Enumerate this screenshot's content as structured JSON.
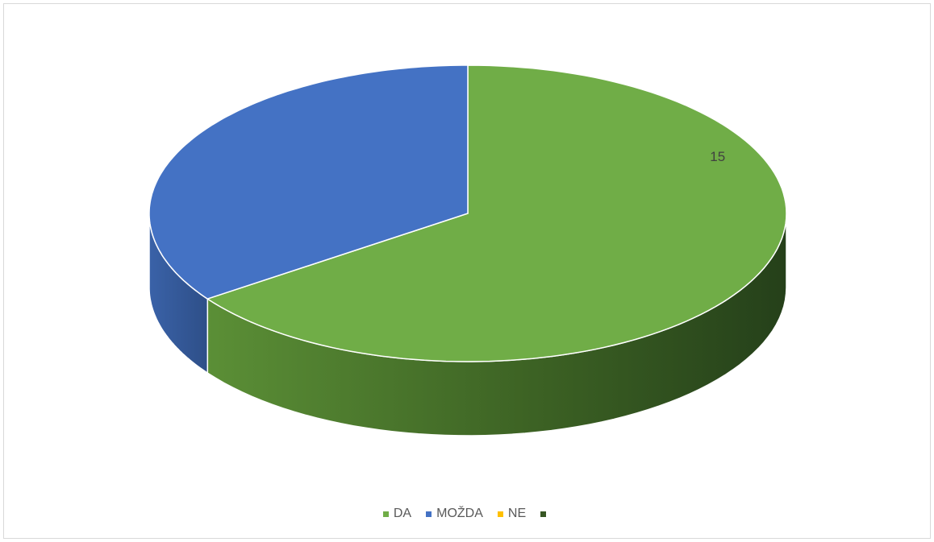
{
  "chart_data": {
    "type": "pie",
    "style": "3d",
    "categories": [
      "DA",
      "MOŽDA",
      "NE",
      ""
    ],
    "values": [
      15,
      8,
      0,
      0
    ],
    "colors": [
      "#70ad47",
      "#4472c4",
      "#ffc000",
      "#375623"
    ],
    "data_labels": [
      "15"
    ],
    "legend_position": "bottom",
    "title": ""
  }
}
